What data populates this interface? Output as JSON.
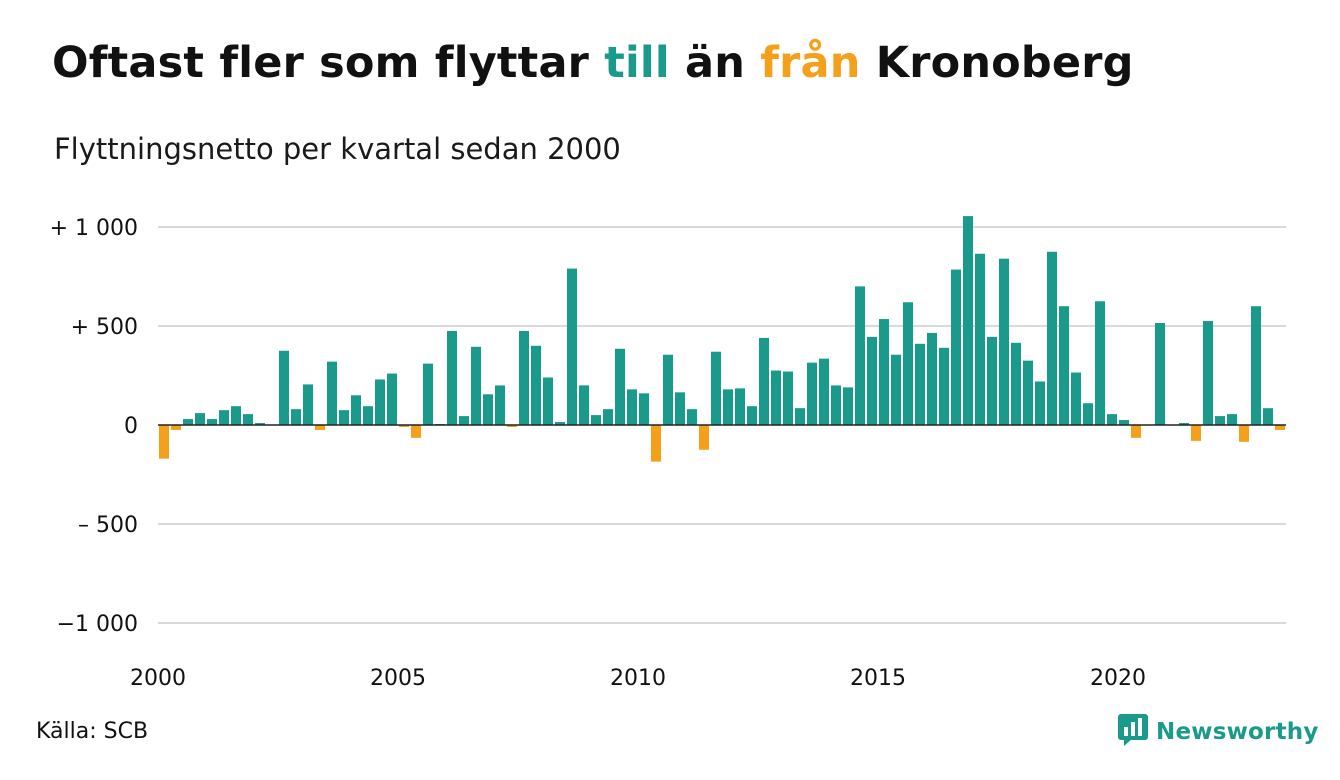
{
  "header": {
    "title_part1": "Oftast fler som flyttar ",
    "title_in": "till",
    "title_part2": " än ",
    "title_out": "från",
    "title_part3": " Kronoberg",
    "subtitle": "Flyttningsnetto per kvartal sedan 2000"
  },
  "footer": {
    "source": "Källa: SCB",
    "brand": "Newsworthy",
    "brand_icon": "chart-bubble-icon"
  },
  "colors": {
    "positive": "#1a9a8a",
    "negative": "#f5a01b",
    "grid": "#d9d9d9",
    "zero_line": "#222222"
  },
  "chart_data": {
    "type": "bar",
    "title": "Oftast fler som flyttar till än från Kronoberg",
    "subtitle": "Flyttningsnetto per kvartal sedan 2000",
    "xlabel": "",
    "ylabel": "",
    "ylim": [
      -1000,
      1000
    ],
    "yticks": [
      {
        "value": 1000,
        "label": "+ 1 000"
      },
      {
        "value": 500,
        "label": "+   500"
      },
      {
        "value": 0,
        "label": "0"
      },
      {
        "value": -500,
        "label": "–  500"
      },
      {
        "value": -1000,
        "label": "−1 000"
      }
    ],
    "xticks": [
      "2000",
      "2005",
      "2010",
      "2015",
      "2020"
    ],
    "grid": true,
    "start": "2000 Q1",
    "frequency": "quarterly",
    "values": [
      -170,
      -25,
      30,
      60,
      30,
      75,
      95,
      55,
      10,
      0,
      375,
      80,
      205,
      -25,
      320,
      75,
      150,
      95,
      230,
      260,
      -10,
      -65,
      310,
      5,
      475,
      45,
      395,
      155,
      200,
      -10,
      475,
      400,
      240,
      15,
      790,
      200,
      50,
      80,
      385,
      180,
      160,
      -185,
      355,
      165,
      80,
      -125,
      370,
      180,
      185,
      95,
      440,
      275,
      270,
      85,
      315,
      335,
      200,
      190,
      700,
      445,
      535,
      355,
      620,
      410,
      465,
      390,
      785,
      1055,
      865,
      445,
      840,
      415,
      325,
      220,
      875,
      600,
      265,
      110,
      625,
      55,
      25,
      -65,
      0,
      515,
      0,
      10,
      -80,
      525,
      45,
      55,
      -85,
      600,
      85,
      -25
    ]
  }
}
